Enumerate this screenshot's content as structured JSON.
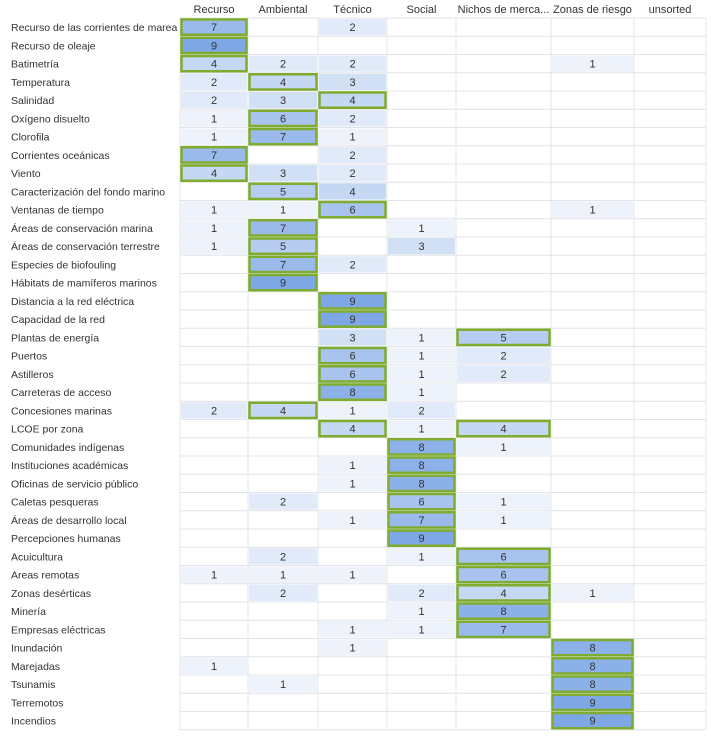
{
  "chart_data": {
    "type": "heatmap",
    "columns": [
      "Recurso",
      "Ambiental",
      "Técnico",
      "Social",
      "Nichos de merca...",
      "Zonas de riesgo",
      "unsorted"
    ],
    "rows": [
      {
        "label": "Recurso de las corrientes de marea",
        "values": [
          7,
          null,
          2,
          null,
          null,
          null,
          null
        ],
        "highlighted": [
          0
        ]
      },
      {
        "label": "Recurso de oleaje",
        "values": [
          9,
          null,
          null,
          null,
          null,
          null,
          null
        ],
        "highlighted": [
          0
        ]
      },
      {
        "label": "Batimetría",
        "values": [
          4,
          2,
          2,
          null,
          null,
          1,
          null
        ],
        "highlighted": [
          0
        ]
      },
      {
        "label": "Temperatura",
        "values": [
          2,
          4,
          3,
          null,
          null,
          null,
          null
        ],
        "highlighted": [
          1
        ]
      },
      {
        "label": "Salinidad",
        "values": [
          2,
          3,
          4,
          null,
          null,
          null,
          null
        ],
        "highlighted": [
          2
        ]
      },
      {
        "label": "Oxígeno disuelto",
        "values": [
          1,
          6,
          2,
          null,
          null,
          null,
          null
        ],
        "highlighted": [
          1
        ]
      },
      {
        "label": "Clorofila",
        "values": [
          1,
          7,
          1,
          null,
          null,
          null,
          null
        ],
        "highlighted": [
          1
        ]
      },
      {
        "label": "Corrientes oceánicas",
        "values": [
          7,
          null,
          2,
          null,
          null,
          null,
          null
        ],
        "highlighted": [
          0
        ]
      },
      {
        "label": "Viento",
        "values": [
          4,
          3,
          2,
          null,
          null,
          null,
          null
        ],
        "highlighted": [
          0
        ]
      },
      {
        "label": "Caracterización del fondo marino",
        "values": [
          null,
          5,
          4,
          null,
          null,
          null,
          null
        ],
        "highlighted": [
          1
        ]
      },
      {
        "label": "Ventanas de tiempo",
        "values": [
          1,
          1,
          6,
          null,
          null,
          1,
          null
        ],
        "highlighted": [
          2
        ]
      },
      {
        "label": "Áreas de conservación marina",
        "values": [
          1,
          7,
          null,
          1,
          null,
          null,
          null
        ],
        "highlighted": [
          1
        ]
      },
      {
        "label": "Áreas de conservación terrestre",
        "values": [
          1,
          5,
          null,
          3,
          null,
          null,
          null
        ],
        "highlighted": [
          1
        ]
      },
      {
        "label": "Especies de biofouling",
        "values": [
          null,
          7,
          2,
          null,
          null,
          null,
          null
        ],
        "highlighted": [
          1
        ]
      },
      {
        "label": "Hábitats de mamíferos marinos",
        "values": [
          null,
          9,
          null,
          null,
          null,
          null,
          null
        ],
        "highlighted": [
          1
        ]
      },
      {
        "label": "Distancia a la red eléctrica",
        "values": [
          null,
          null,
          9,
          null,
          null,
          null,
          null
        ],
        "highlighted": [
          2
        ]
      },
      {
        "label": "Capacidad de la red",
        "values": [
          null,
          null,
          9,
          null,
          null,
          null,
          null
        ],
        "highlighted": [
          2
        ]
      },
      {
        "label": "Plantas de energía",
        "values": [
          null,
          null,
          3,
          1,
          5,
          null,
          null
        ],
        "highlighted": [
          4
        ]
      },
      {
        "label": "Puertos",
        "values": [
          null,
          null,
          6,
          1,
          2,
          null,
          null
        ],
        "highlighted": [
          2
        ]
      },
      {
        "label": "Astilleros",
        "values": [
          null,
          null,
          6,
          1,
          2,
          null,
          null
        ],
        "highlighted": [
          2
        ]
      },
      {
        "label": "Carreteras de acceso",
        "values": [
          null,
          null,
          8,
          1,
          null,
          null,
          null
        ],
        "highlighted": [
          2
        ]
      },
      {
        "label": "Concesiones marinas",
        "values": [
          2,
          4,
          1,
          2,
          null,
          null,
          null
        ],
        "highlighted": [
          1
        ]
      },
      {
        "label": "LCOE por zona",
        "values": [
          null,
          null,
          4,
          1,
          4,
          null,
          null
        ],
        "highlighted": [
          2,
          4
        ]
      },
      {
        "label": "Comunidades indígenas",
        "values": [
          null,
          null,
          null,
          8,
          1,
          null,
          null
        ],
        "highlighted": [
          3
        ]
      },
      {
        "label": "Instituciones académicas",
        "values": [
          null,
          null,
          1,
          8,
          null,
          null,
          null
        ],
        "highlighted": [
          3
        ]
      },
      {
        "label": "Oficinas de servicio público",
        "values": [
          null,
          null,
          1,
          8,
          null,
          null,
          null
        ],
        "highlighted": [
          3
        ]
      },
      {
        "label": "Caletas pesqueras",
        "values": [
          null,
          2,
          null,
          6,
          1,
          null,
          null
        ],
        "highlighted": [
          3
        ]
      },
      {
        "label": "Áreas de desarrollo local",
        "values": [
          null,
          null,
          1,
          7,
          1,
          null,
          null
        ],
        "highlighted": [
          3
        ]
      },
      {
        "label": "Percepciones humanas",
        "values": [
          null,
          null,
          null,
          9,
          null,
          null,
          null
        ],
        "highlighted": [
          3
        ]
      },
      {
        "label": "Acuicultura",
        "values": [
          null,
          2,
          null,
          1,
          6,
          null,
          null
        ],
        "highlighted": [
          4
        ]
      },
      {
        "label": "Areas remotas",
        "values": [
          1,
          1,
          1,
          null,
          6,
          null,
          null
        ],
        "highlighted": [
          4
        ]
      },
      {
        "label": "Zonas desérticas",
        "values": [
          null,
          2,
          null,
          2,
          4,
          1,
          null
        ],
        "highlighted": [
          4
        ]
      },
      {
        "label": "Minería",
        "values": [
          null,
          null,
          null,
          1,
          8,
          null,
          null
        ],
        "highlighted": [
          4
        ]
      },
      {
        "label": "Empresas eléctricas",
        "values": [
          null,
          null,
          1,
          1,
          7,
          null,
          null
        ],
        "highlighted": [
          4
        ]
      },
      {
        "label": "Inundación",
        "values": [
          null,
          null,
          1,
          null,
          null,
          8,
          null
        ],
        "highlighted": [
          5
        ]
      },
      {
        "label": "Marejadas",
        "values": [
          1,
          null,
          null,
          null,
          null,
          8,
          null
        ],
        "highlighted": [
          5
        ]
      },
      {
        "label": "Tsunamis",
        "values": [
          null,
          1,
          null,
          null,
          null,
          8,
          null
        ],
        "highlighted": [
          5
        ]
      },
      {
        "label": "Terremotos",
        "values": [
          null,
          null,
          null,
          null,
          null,
          9,
          null
        ],
        "highlighted": [
          5
        ]
      },
      {
        "label": "Incendios",
        "values": [
          null,
          null,
          null,
          null,
          null,
          9,
          null
        ],
        "highlighted": [
          5
        ]
      }
    ],
    "value_range": [
      1,
      9
    ],
    "colors": {
      "low": "#eef3fb",
      "high": "#7ea7e6",
      "highlight_border": "#7fab2f",
      "grid": "#e1e4e8",
      "text": "#333333"
    }
  }
}
